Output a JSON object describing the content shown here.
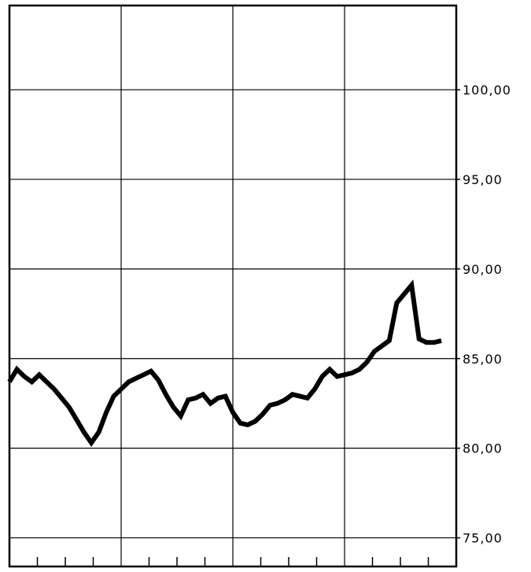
{
  "chart_data": {
    "type": "line",
    "title": "",
    "xlabel": "",
    "ylabel": "",
    "ylim": [
      73.4,
      104.7
    ],
    "yticks": [
      75,
      80,
      85,
      90,
      95,
      100
    ],
    "ytick_labels": [
      "75,00",
      "80,00",
      "85,00",
      "90,00",
      "95,00",
      "100,00"
    ],
    "x_major_divisions": 4,
    "x_minor_ticks_per_division": 4,
    "grid": true,
    "y_axis_side": "right",
    "series": [
      {
        "x": [
          0,
          0.5,
          1,
          1.5,
          2,
          2.5,
          3,
          3.5,
          4,
          4.5,
          5,
          5.5,
          6,
          6.5,
          7,
          7.5,
          8,
          8.5,
          9,
          9.5,
          10,
          10.5,
          11,
          11.5,
          12,
          12.5,
          13,
          13.5,
          14,
          14.5,
          15,
          15.5,
          16,
          16.5,
          17,
          17.5,
          18,
          18.5,
          19,
          19.5,
          20,
          20.5,
          21,
          21.5,
          22,
          22.5,
          23,
          23.5,
          24,
          24.5,
          25,
          25.5,
          26,
          26.5,
          27,
          27.5,
          28,
          28.5,
          29,
          29.5,
          30
        ],
        "values": [
          83.7,
          84.4,
          84.0,
          83.7,
          84.1,
          83.7,
          83.3,
          82.8,
          82.3,
          81.6,
          80.9,
          80.3,
          80.9,
          82.0,
          82.9,
          83.3,
          83.7,
          83.9,
          84.1,
          84.3,
          83.8,
          83.0,
          82.3,
          81.8,
          82.7,
          82.8,
          83.0,
          82.5,
          82.8,
          82.9,
          82.0,
          81.4,
          81.3,
          81.5,
          81.9,
          82.4,
          82.5,
          82.7,
          83.0,
          82.9,
          82.8,
          83.3,
          84.0,
          84.4,
          84.0,
          84.1,
          84.2,
          84.4,
          84.8,
          85.4,
          85.7,
          86.0,
          88.1,
          88.6,
          89.1,
          86.1,
          85.9,
          85.9,
          86.0,
          null,
          null
        ]
      }
    ]
  }
}
